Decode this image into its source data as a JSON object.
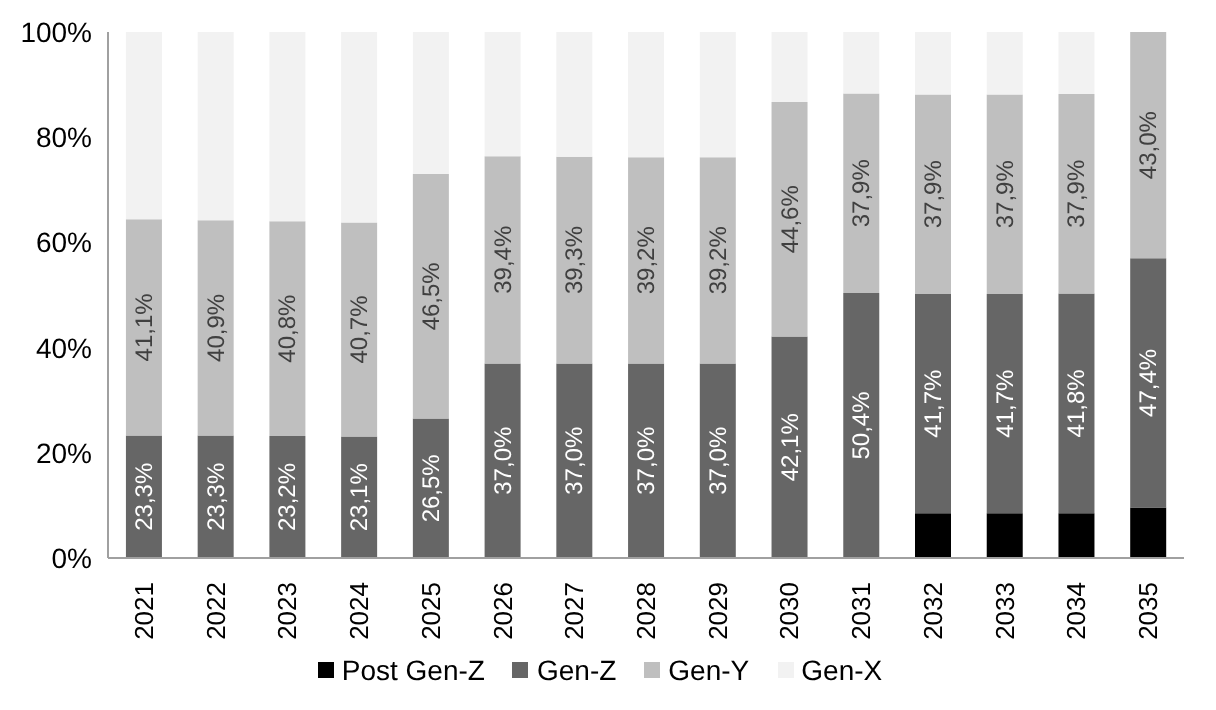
{
  "chart_data": {
    "type": "bar",
    "stacked": true,
    "categories": [
      "2021",
      "2022",
      "2023",
      "2024",
      "2025",
      "2026",
      "2027",
      "2028",
      "2029",
      "2030",
      "2031",
      "2032",
      "2033",
      "2034",
      "2035"
    ],
    "series": [
      {
        "name": "Post Gen-Z",
        "color": "#000000",
        "values": [
          null,
          null,
          null,
          null,
          null,
          null,
          null,
          null,
          null,
          null,
          null,
          8.5,
          8.5,
          8.5,
          9.6
        ]
      },
      {
        "name": "Gen-Z",
        "color": "#666666",
        "values": [
          23.3,
          23.3,
          23.2,
          23.1,
          26.5,
          37.0,
          37.0,
          37.0,
          37.0,
          42.1,
          50.4,
          41.7,
          41.7,
          41.8,
          47.4
        ],
        "value_labels": [
          "23,3%",
          "23,3%",
          "23,2%",
          "23,1%",
          "26,5%",
          "37,0%",
          "37,0%",
          "37,0%",
          "37,0%",
          "42,1%",
          "50,4%",
          "41,7%",
          "41,7%",
          "41,8%",
          "47,4%"
        ]
      },
      {
        "name": "Gen-Y",
        "color": "#bfbfbf",
        "values": [
          41.1,
          40.9,
          40.8,
          40.7,
          46.5,
          39.4,
          39.3,
          39.2,
          39.2,
          44.6,
          37.9,
          37.9,
          37.9,
          37.9,
          43.0
        ],
        "value_labels": [
          "41,1%",
          "40,9%",
          "40,8%",
          "40,7%",
          "46,5%",
          "39,4%",
          "39,3%",
          "39,2%",
          "39,2%",
          "44,6%",
          "37,9%",
          "37,9%",
          "37,9%",
          "37,9%",
          "43,0%"
        ]
      },
      {
        "name": "Gen-X",
        "color": "#f2f2f2",
        "values": [
          35.6,
          35.8,
          36.0,
          36.2,
          27.0,
          23.6,
          23.7,
          23.8,
          23.8,
          13.3,
          11.7,
          11.9,
          11.9,
          11.8,
          null
        ]
      }
    ],
    "ylim": [
      0,
      100
    ],
    "yticks": [
      {
        "value": 0,
        "label": "0%"
      },
      {
        "value": 20,
        "label": "20%"
      },
      {
        "value": 40,
        "label": "40%"
      },
      {
        "value": 60,
        "label": "60%"
      },
      {
        "value": 80,
        "label": "80%"
      },
      {
        "value": 100,
        "label": "100%"
      }
    ],
    "grid": false,
    "legend": "bottom"
  }
}
